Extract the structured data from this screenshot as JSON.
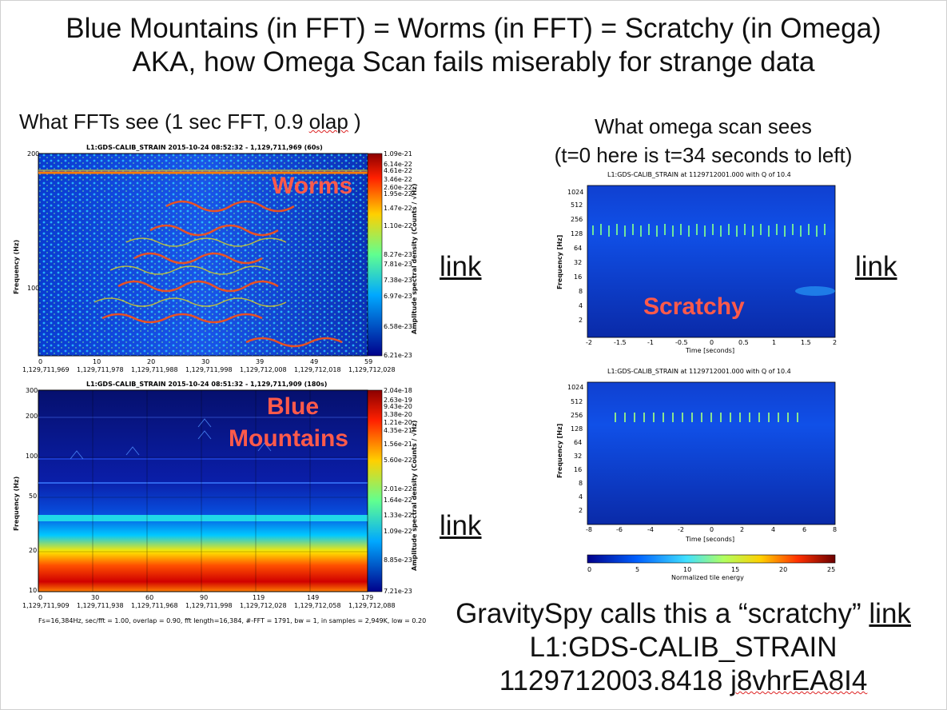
{
  "title_line1": "Blue Mountains (in FFT) = Worms (in FFT) = Scratchy (in Omega)",
  "title_line2": "AKA, how Omega Scan fails miserably for strange data",
  "left_caption_a": "What FFTs see (1 sec FFT, 0.9 ",
  "left_caption_b": "olap",
  "left_caption_c": " )",
  "right_caption_line1": "What omega scan sees",
  "right_caption_line2": "(t=0 here is t=34 seconds to left)",
  "link_label": "link",
  "plot1": {
    "title": "L1:GDS-CALIB_STRAIN 2015-10-24 08:52:32 - 1,129,711,969 (60s)",
    "ylabel": "Frequency (Hz)",
    "yticks": [
      "200",
      "100"
    ],
    "xticks_top": [
      "0",
      "10",
      "20",
      "30",
      "39",
      "49",
      "59"
    ],
    "xticks_bottom": [
      "1,129,711,969",
      "1,129,711,978",
      "1,129,711,988",
      "1,129,711,998",
      "1,129,712,008",
      "1,129,712,018",
      "1,129,712,028"
    ],
    "cbar_label": "Amplitude spectral density (Counts / √Hz)",
    "cbar_ticks": [
      "1.09e-21",
      "6.14e-22",
      "4.61e-22",
      "3.46e-22",
      "2.60e-22",
      "1.95e-22",
      "1.47e-22",
      "1.10e-22",
      "8.27e-23",
      "7.81e-23",
      "7.38e-23",
      "6.97e-23",
      "6.58e-23",
      "6.21e-23"
    ],
    "overlay": "Worms"
  },
  "plot2": {
    "title": "L1:GDS-CALIB_STRAIN 2015-10-24 08:51:32 - 1,129,711,909 (180s)",
    "ylabel": "Frequency (Hz)",
    "yticks": [
      "300",
      "200",
      "100",
      "50",
      "20",
      "10"
    ],
    "xticks_top": [
      "0",
      "30",
      "60",
      "90",
      "119",
      "149",
      "179"
    ],
    "xticks_bottom": [
      "1,129,711,909",
      "1,129,711,938",
      "1,129,711,968",
      "1,129,711,998",
      "1,129,712,028",
      "1,129,712,058",
      "1,129,712,088"
    ],
    "cbar_label": "Amplitude spectral density (Counts / √Hz)",
    "cbar_ticks": [
      "2.04e-18",
      "2.63e-19",
      "9.43e-20",
      "3.38e-20",
      "1.21e-20",
      "4.35e-21",
      "1.56e-21",
      "5.60e-22",
      "2.01e-22",
      "1.64e-22",
      "1.33e-22",
      "1.09e-22",
      "8.85e-23",
      "7.21e-23"
    ],
    "overlay_line1": "Blue",
    "overlay_line2": "Mountains",
    "footer": "Fs=16,384Hz, sec/fft = 1.00, overlap = 0.90, fft length=16,384, #-FFT = 1791, bw = 1, in samples = 2,949K, low = 0.20"
  },
  "omega1": {
    "title": "L1:GDS-CALIB_STRAIN at 1129712001.000 with Q of 10.4",
    "ylabel": "Frequency [Hz]",
    "yticks": [
      "1024",
      "512",
      "256",
      "128",
      "64",
      "32",
      "16",
      "8",
      "4",
      "2"
    ],
    "xticks": [
      "-2",
      "-1.5",
      "-1",
      "-0.5",
      "0",
      "0.5",
      "1",
      "1.5",
      "2"
    ],
    "xlabel": "Time [seconds]",
    "overlay": "Scratchy"
  },
  "omega2": {
    "title": "L1:GDS-CALIB_STRAIN at 1129712001.000 with Q of 10.4",
    "ylabel": "Frequency [Hz]",
    "yticks": [
      "1024",
      "512",
      "256",
      "128",
      "64",
      "32",
      "16",
      "8",
      "4",
      "2"
    ],
    "xticks": [
      "-8",
      "-6",
      "-4",
      "-2",
      "0",
      "2",
      "4",
      "6",
      "8"
    ],
    "xlabel": "Time [seconds]",
    "cbar_ticks": [
      "0",
      "5",
      "10",
      "15",
      "20",
      "25"
    ],
    "cbar_label": "Normalized tile energy"
  },
  "bottom_line1": "GravitySpy calls this a “scratchy” ",
  "bottom_line2": "L1:GDS-CALIB_STRAIN",
  "bottom_line3a": "1129712003.8418 ",
  "bottom_line3b": "j8vhrEA8I4"
}
